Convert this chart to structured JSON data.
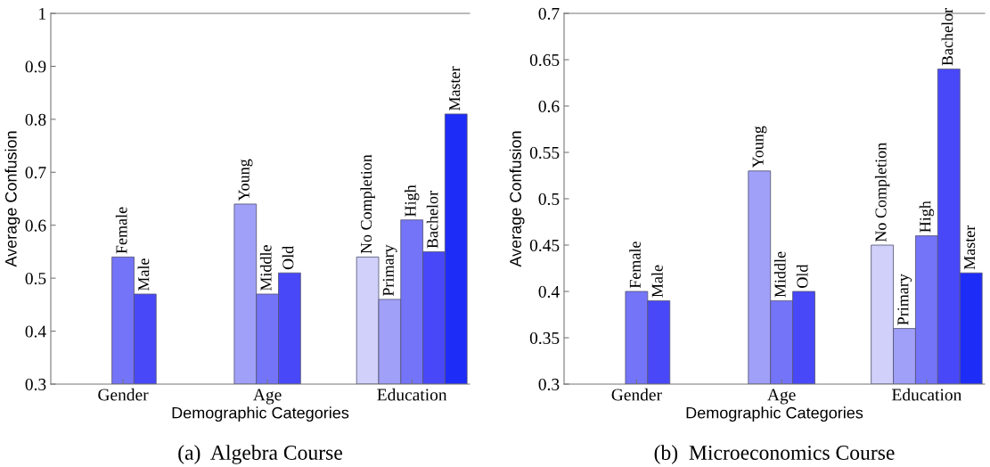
{
  "chart_data": [
    {
      "type": "bar",
      "title": "(a)  Algebra Course",
      "xlabel": "Demographic Categories",
      "ylabel": "Average Confusion",
      "categories": [
        "Gender",
        "Age",
        "Education"
      ],
      "series": [
        {
          "color": "#d0d0fa",
          "values": [
            null,
            null,
            0.54
          ],
          "value_labels": [
            null,
            null,
            "No Completion"
          ]
        },
        {
          "color": "#a0a0f8",
          "values": [
            null,
            0.64,
            0.46
          ],
          "value_labels": [
            null,
            "Young",
            "Primary"
          ]
        },
        {
          "color": "#7474f8",
          "values": [
            0.54,
            0.47,
            0.61
          ],
          "value_labels": [
            "Female",
            "Middle",
            "High"
          ]
        },
        {
          "color": "#4848f8",
          "values": [
            0.47,
            0.51,
            0.55
          ],
          "value_labels": [
            "Male",
            "Old",
            "Bachelor"
          ]
        },
        {
          "color": "#1e2cf8",
          "values": [
            null,
            null,
            0.81
          ],
          "value_labels": [
            null,
            null,
            "Master"
          ]
        }
      ],
      "ylim": [
        0.3,
        1
      ],
      "yticks": [
        0.3,
        0.4,
        0.5,
        0.6,
        0.7,
        0.8,
        0.9,
        1
      ],
      "grid": false,
      "legend": false
    },
    {
      "type": "bar",
      "title": "(b)  Microeconomics Course",
      "xlabel": "Demographic Categories",
      "ylabel": "Average Confusion",
      "categories": [
        "Gender",
        "Age",
        "Education"
      ],
      "series": [
        {
          "color": "#d0d0fa",
          "values": [
            null,
            null,
            0.45
          ],
          "value_labels": [
            null,
            null,
            "No Completion"
          ]
        },
        {
          "color": "#a0a0f8",
          "values": [
            null,
            0.53,
            0.36
          ],
          "value_labels": [
            null,
            "Young",
            "Primary"
          ]
        },
        {
          "color": "#7474f8",
          "values": [
            0.4,
            0.39,
            0.46
          ],
          "value_labels": [
            "Female",
            "Middle",
            "High"
          ]
        },
        {
          "color": "#4848f8",
          "values": [
            0.39,
            0.4,
            0.64
          ],
          "value_labels": [
            "Male",
            "Old",
            "Bachelor"
          ]
        },
        {
          "color": "#1e2cf8",
          "values": [
            null,
            null,
            0.42
          ],
          "value_labels": [
            null,
            null,
            "Master"
          ]
        }
      ],
      "ylim": [
        0.3,
        0.7
      ],
      "yticks": [
        0.3,
        0.35,
        0.4,
        0.45,
        0.5,
        0.55,
        0.6,
        0.65,
        0.7
      ],
      "grid": false,
      "legend": false
    }
  ]
}
